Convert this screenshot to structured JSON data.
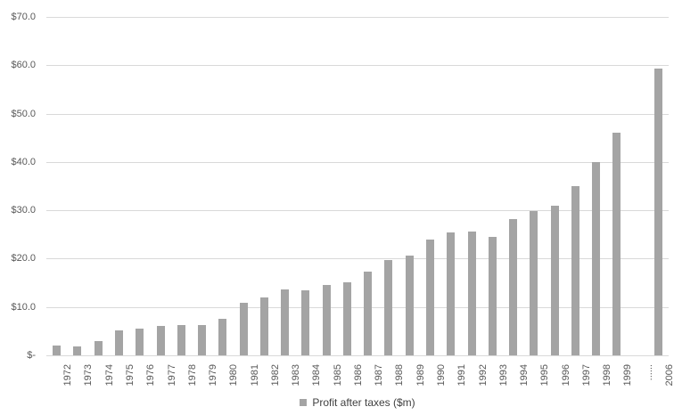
{
  "chart": {
    "background_color": "#ffffff",
    "bar_color": "#a4a4a4",
    "gridline_color": "#d9d9d9",
    "axis_text_color": "#595959",
    "legend_text_color": "#404040"
  },
  "chart_data": {
    "type": "bar",
    "title": "",
    "xlabel": "",
    "ylabel": "",
    "legend": [
      "Profit after taxes ($m)"
    ],
    "legend_position": "bottom-center",
    "grid": true,
    "ylim": [
      0,
      70
    ],
    "y_tick_step": 10,
    "y_tick_labels": [
      "$70.0",
      "$60.0",
      "$50.0",
      "$40.0",
      "$30.0",
      "$20.0",
      "$10.0",
      "$-"
    ],
    "x_tick_rotation": -90,
    "gap_marker": "......",
    "categories": [
      "1972",
      "1973",
      "1974",
      "1975",
      "1976",
      "1977",
      "1978",
      "1979",
      "1980",
      "1981",
      "1982",
      "1983",
      "1984",
      "1985",
      "1986",
      "1987",
      "1988",
      "1989",
      "1990",
      "1991",
      "1992",
      "1993",
      "1994",
      "1995",
      "1996",
      "1997",
      "1998",
      "1999",
      "......",
      "2006"
    ],
    "values": [
      2.1,
      1.9,
      3.0,
      5.1,
      5.6,
      6.1,
      6.2,
      6.3,
      7.5,
      10.8,
      11.9,
      13.7,
      13.4,
      14.6,
      15.2,
      17.3,
      19.7,
      20.6,
      23.9,
      25.4,
      25.6,
      24.5,
      28.2,
      29.8,
      31.0,
      35.0,
      40.0,
      46.0,
      null,
      59.3
    ]
  }
}
